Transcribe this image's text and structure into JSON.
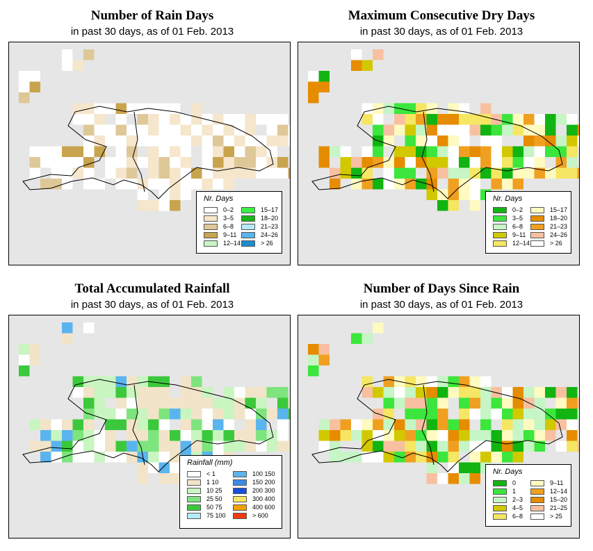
{
  "panels": [
    {
      "title": "Number of Rain Days",
      "subtitle": "in past 30 days, as of  01 Feb. 2013",
      "legend": {
        "title": "Nr. Days",
        "items": [
          {
            "label": "0–2",
            "color": "#ffffff"
          },
          {
            "label": "3–5",
            "color": "#f5e6cc"
          },
          {
            "label": "6–8",
            "color": "#dfc898"
          },
          {
            "label": "9–11",
            "color": "#c9a44e"
          },
          {
            "label": "12–14",
            "color": "#c8f5c8"
          },
          {
            "label": "15–17",
            "color": "#3cf04a"
          },
          {
            "label": "18–20",
            "color": "#18b418"
          },
          {
            "label": "21–23",
            "color": "#b4ecf8"
          },
          {
            "label": "24–26",
            "color": "#5ab4ee"
          },
          {
            "label": "> 26",
            "color": "#1e8ccc"
          }
        ]
      }
    },
    {
      "title": "Maximum Consecutive Dry Days",
      "subtitle": "in past 30 days, as of  01 Feb. 2013",
      "legend": {
        "title": "Nr. Days",
        "items": [
          {
            "label": "0–2",
            "color": "#11b411"
          },
          {
            "label": "3–5",
            "color": "#3ce63c"
          },
          {
            "label": "6–8",
            "color": "#c6f5c6"
          },
          {
            "label": "9–11",
            "color": "#d2c800"
          },
          {
            "label": "12–14",
            "color": "#f5e664"
          },
          {
            "label": "15–17",
            "color": "#fffac0"
          },
          {
            "label": "18–20",
            "color": "#e68c00"
          },
          {
            "label": "21–23",
            "color": "#f0a020"
          },
          {
            "label": "24–26",
            "color": "#f8c0a0"
          },
          {
            "label": "> 26",
            "color": "#ffffff"
          }
        ]
      }
    },
    {
      "title": "Total Accumulated Rainfall",
      "subtitle": "in past 30 days, as of  01 Feb. 2013",
      "legend": {
        "title": "Rainfall (mm)",
        "items": [
          {
            "label": "< 1",
            "color": "#ffffff"
          },
          {
            "label": "1   10",
            "color": "#f2e4c8"
          },
          {
            "label": "10   25",
            "color": "#c8f5c0"
          },
          {
            "label": "25   50",
            "color": "#7ee47e"
          },
          {
            "label": "50   75",
            "color": "#3cc83c"
          },
          {
            "label": "75   100",
            "color": "#b4ecf8"
          },
          {
            "label": "100   150",
            "color": "#5ab4ee"
          },
          {
            "label": "150   200",
            "color": "#3c8ce6"
          },
          {
            "label": "200   300",
            "color": "#1450dc"
          },
          {
            "label": "300   400",
            "color": "#fae664"
          },
          {
            "label": "400   600",
            "color": "#f5a000"
          },
          {
            "label": "> 600",
            "color": "#f03c0a"
          }
        ]
      }
    },
    {
      "title": "Number of Days Since Rain",
      "subtitle": "in past 30 days, as of  01 Feb. 2013",
      "legend": {
        "title": "Nr. Days",
        "items": [
          {
            "label": "0",
            "color": "#11b411"
          },
          {
            "label": "1",
            "color": "#3ce63c"
          },
          {
            "label": "2–3",
            "color": "#c6f5c6"
          },
          {
            "label": "4–5",
            "color": "#d2c800"
          },
          {
            "label": "6–8",
            "color": "#f5e664"
          },
          {
            "label": "9–11",
            "color": "#fffac0"
          },
          {
            "label": "12–14",
            "color": "#f0a020"
          },
          {
            "label": "15–20",
            "color": "#e68c00"
          },
          {
            "label": "21–25",
            "color": "#f8c0a0"
          },
          {
            "label": "> 25",
            "color": "#ffffff"
          }
        ]
      }
    }
  ]
}
